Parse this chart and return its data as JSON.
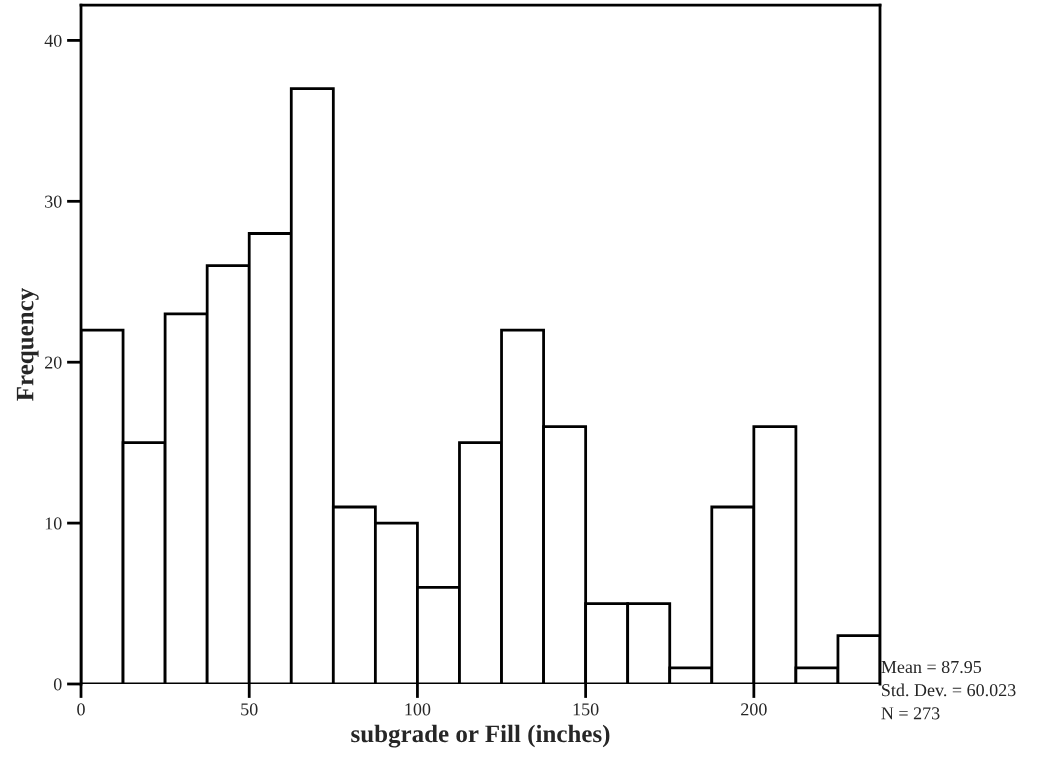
{
  "chart_data": {
    "type": "histogram",
    "xlabel": "subgrade or Fill (inches)",
    "ylabel": "Frequency",
    "bins": [
      0,
      12.5,
      25,
      37.5,
      50,
      62.5,
      75,
      87.5,
      100,
      112.5,
      125,
      137.5,
      150,
      162.5,
      175,
      187.5,
      200,
      212.5,
      225,
      237.5
    ],
    "values": [
      22,
      15,
      23,
      26,
      28,
      37,
      11,
      10,
      6,
      15,
      22,
      16,
      5,
      5,
      1,
      11,
      16,
      1,
      3
    ],
    "color": "#ffffff",
    "xlim": [
      0,
      237.5
    ],
    "ylim": [
      0,
      42.2
    ],
    "xticks": [
      0,
      50,
      100,
      150,
      200
    ],
    "yticks": [
      0,
      10,
      20,
      30,
      40
    ],
    "grid": false,
    "annotations": [
      "Mean = 87.95",
      "Std. Dev. = 60.023",
      "N = 273"
    ]
  }
}
